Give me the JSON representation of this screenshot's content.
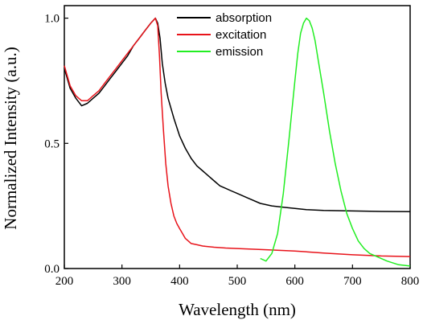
{
  "chart_data": {
    "type": "line",
    "xlabel": "Wavelength (nm)",
    "ylabel": "Normalized Intensity (a.u.)",
    "xlim": [
      200,
      800
    ],
    "ylim": [
      0,
      1.05
    ],
    "x_ticks": [
      200,
      300,
      400,
      500,
      600,
      700,
      800
    ],
    "x_tick_labels": [
      "200",
      "300",
      "400",
      "500",
      "600",
      "700",
      "800"
    ],
    "y_ticks": [
      0.0,
      0.5,
      1.0
    ],
    "y_tick_labels": [
      "0.0",
      "0.5",
      "1.0"
    ],
    "grid": false,
    "legend_position": "top-right",
    "series": [
      {
        "name": "absorption",
        "color": "#000000",
        "x": [
          200,
          210,
          220,
          230,
          240,
          250,
          260,
          270,
          280,
          290,
          300,
          310,
          320,
          330,
          340,
          350,
          358,
          362,
          366,
          370,
          375,
          380,
          390,
          400,
          410,
          420,
          430,
          440,
          450,
          460,
          470,
          480,
          490,
          500,
          520,
          540,
          560,
          580,
          600,
          620,
          650,
          700,
          750,
          800
        ],
        "y": [
          0.8,
          0.72,
          0.68,
          0.65,
          0.66,
          0.68,
          0.7,
          0.73,
          0.76,
          0.79,
          0.82,
          0.85,
          0.89,
          0.92,
          0.95,
          0.98,
          1.0,
          0.98,
          0.92,
          0.82,
          0.74,
          0.68,
          0.6,
          0.53,
          0.48,
          0.44,
          0.41,
          0.39,
          0.37,
          0.35,
          0.33,
          0.32,
          0.31,
          0.3,
          0.28,
          0.26,
          0.25,
          0.245,
          0.24,
          0.235,
          0.232,
          0.23,
          0.228,
          0.227
        ]
      },
      {
        "name": "excitation",
        "color": "#e8131a",
        "x": [
          200,
          210,
          220,
          230,
          240,
          250,
          260,
          270,
          280,
          290,
          300,
          310,
          320,
          330,
          340,
          350,
          358,
          362,
          365,
          368,
          372,
          376,
          380,
          385,
          390,
          395,
          400,
          405,
          410,
          415,
          420,
          430,
          440,
          460,
          480,
          500,
          550,
          600,
          650,
          700,
          750,
          800
        ],
        "y": [
          0.81,
          0.73,
          0.69,
          0.67,
          0.67,
          0.69,
          0.71,
          0.74,
          0.77,
          0.8,
          0.83,
          0.86,
          0.89,
          0.92,
          0.95,
          0.98,
          1.0,
          0.97,
          0.85,
          0.7,
          0.55,
          0.42,
          0.33,
          0.26,
          0.21,
          0.18,
          0.16,
          0.14,
          0.12,
          0.11,
          0.1,
          0.095,
          0.09,
          0.085,
          0.082,
          0.08,
          0.075,
          0.07,
          0.062,
          0.055,
          0.05,
          0.048
        ]
      },
      {
        "name": "emission",
        "color": "#22ee22",
        "x": [
          540,
          550,
          560,
          570,
          580,
          590,
          600,
          605,
          610,
          615,
          620,
          625,
          630,
          635,
          640,
          650,
          660,
          670,
          680,
          690,
          700,
          710,
          720,
          730,
          740,
          760,
          780,
          800
        ],
        "y": [
          0.04,
          0.03,
          0.06,
          0.14,
          0.3,
          0.52,
          0.75,
          0.86,
          0.94,
          0.98,
          1.0,
          0.99,
          0.96,
          0.91,
          0.84,
          0.7,
          0.55,
          0.42,
          0.31,
          0.22,
          0.16,
          0.11,
          0.08,
          0.06,
          0.05,
          0.03,
          0.015,
          0.01
        ]
      }
    ]
  }
}
